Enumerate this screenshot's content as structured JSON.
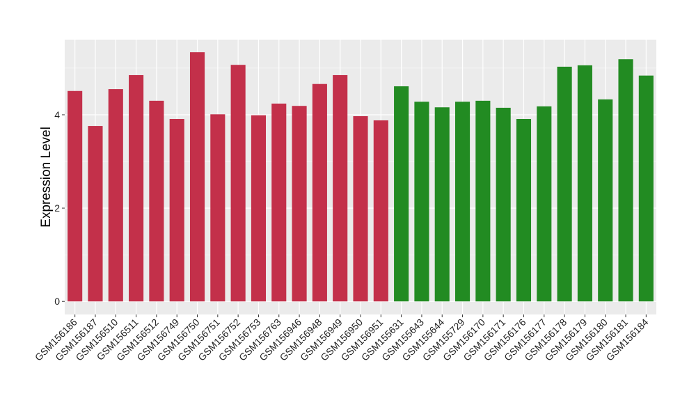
{
  "chart_data": {
    "type": "bar",
    "title": "",
    "xlabel": "",
    "ylabel": "Expression Level",
    "ylim": [
      -0.28,
      5.61
    ],
    "yticks": [
      0,
      2,
      4
    ],
    "grid": true,
    "legend": "none",
    "categories": [
      "GSM156186",
      "GSM156187",
      "GSM156510",
      "GSM156511",
      "GSM156512",
      "GSM156749",
      "GSM156750",
      "GSM156751",
      "GSM156752",
      "GSM156753",
      "GSM156763",
      "GSM156946",
      "GSM156948",
      "GSM156949",
      "GSM156950",
      "GSM156951",
      "GSM155631",
      "GSM155643",
      "GSM155644",
      "GSM155729",
      "GSM156170",
      "GSM156171",
      "GSM156176",
      "GSM156177",
      "GSM156178",
      "GSM156179",
      "GSM156180",
      "GSM156181",
      "GSM156184"
    ],
    "values": [
      4.51,
      3.76,
      4.55,
      4.85,
      4.3,
      3.91,
      5.34,
      4.01,
      5.07,
      3.99,
      4.24,
      4.19,
      4.66,
      4.85,
      3.97,
      3.88,
      4.61,
      4.28,
      4.16,
      4.28,
      4.3,
      4.15,
      3.91,
      4.18,
      5.03,
      5.06,
      4.33,
      5.19,
      4.84
    ],
    "groups": [
      "red",
      "red",
      "red",
      "red",
      "red",
      "red",
      "red",
      "red",
      "red",
      "red",
      "red",
      "red",
      "red",
      "red",
      "red",
      "red",
      "green",
      "green",
      "green",
      "green",
      "green",
      "green",
      "green",
      "green",
      "green",
      "green",
      "green",
      "green",
      "green"
    ],
    "colors": {
      "red": "#C3304A",
      "green": "#228B22",
      "panel": "#EBEBEB",
      "grid": "#FFFFFF"
    }
  }
}
